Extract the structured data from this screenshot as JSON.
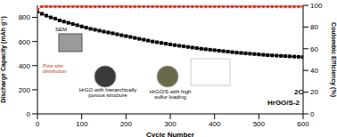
{
  "chart_data": {
    "type": "line",
    "x_label": "Cycle Number",
    "y_label": "Discharge Capacity (mAh g⁻¹)",
    "y2_label": "Coulombic Efficiency (%)",
    "x": [
      0,
      10,
      20,
      30,
      40,
      50,
      60,
      70,
      80,
      90,
      100,
      110,
      120,
      130,
      140,
      150,
      160,
      170,
      180,
      190,
      200,
      210,
      220,
      230,
      240,
      250,
      260,
      270,
      280,
      290,
      300,
      310,
      320,
      330,
      340,
      350,
      360,
      370,
      380,
      390,
      400,
      410,
      420,
      430,
      440,
      450,
      460,
      470,
      480,
      490,
      500,
      510,
      520,
      530,
      540,
      550,
      560,
      570,
      580,
      590,
      600
    ],
    "series": [
      {
        "color": "#000000",
        "marker": "square",
        "values": [
          850,
          830,
          815,
          800,
          790,
          775,
          765,
          755,
          745,
          735,
          725,
          715,
          705,
          698,
          690,
          682,
          675,
          668,
          660,
          652,
          645,
          638,
          630,
          622,
          615,
          608,
          600,
          594,
          588,
          582,
          576,
          570,
          565,
          560,
          555,
          550,
          545,
          540,
          536,
          532,
          528,
          524,
          520,
          516,
          512,
          508,
          505,
          502,
          499,
          496,
          493,
          490,
          487,
          485,
          483,
          481,
          479,
          477,
          475,
          473,
          471
        ]
      },
      {
        "color": "#e8332a",
        "marker": "circle",
        "axis": "y2",
        "values": [
          96,
          99,
          99,
          99,
          99,
          99,
          99,
          99,
          99,
          99,
          99,
          99,
          99,
          99,
          99,
          99,
          99,
          99,
          99,
          99,
          99,
          99,
          99,
          99,
          99,
          99,
          99,
          99,
          99,
          99,
          99,
          99,
          99,
          99,
          99,
          99,
          99,
          99,
          99,
          99,
          99,
          99,
          99,
          99,
          99,
          99,
          99,
          99,
          99,
          99,
          99,
          99,
          99,
          99,
          99,
          99,
          99,
          99,
          99,
          99,
          99
        ]
      }
    ],
    "xlim": [
      0,
      600
    ],
    "xticks": [
      0,
      100,
      200,
      300,
      400,
      500,
      600
    ],
    "ylim": [
      0,
      900
    ],
    "yticks": [
      0,
      200,
      400,
      600,
      800
    ],
    "y2lim": [
      0,
      100
    ],
    "y2ticks": [
      0,
      20,
      40,
      60,
      80,
      100
    ],
    "annotations": [
      "SEM",
      "Pore size distribution",
      "HrGO with hierarchically porous structure",
      "HrGO/S with high sulfur loading",
      "2C",
      "HrGO/S-2"
    ]
  }
}
